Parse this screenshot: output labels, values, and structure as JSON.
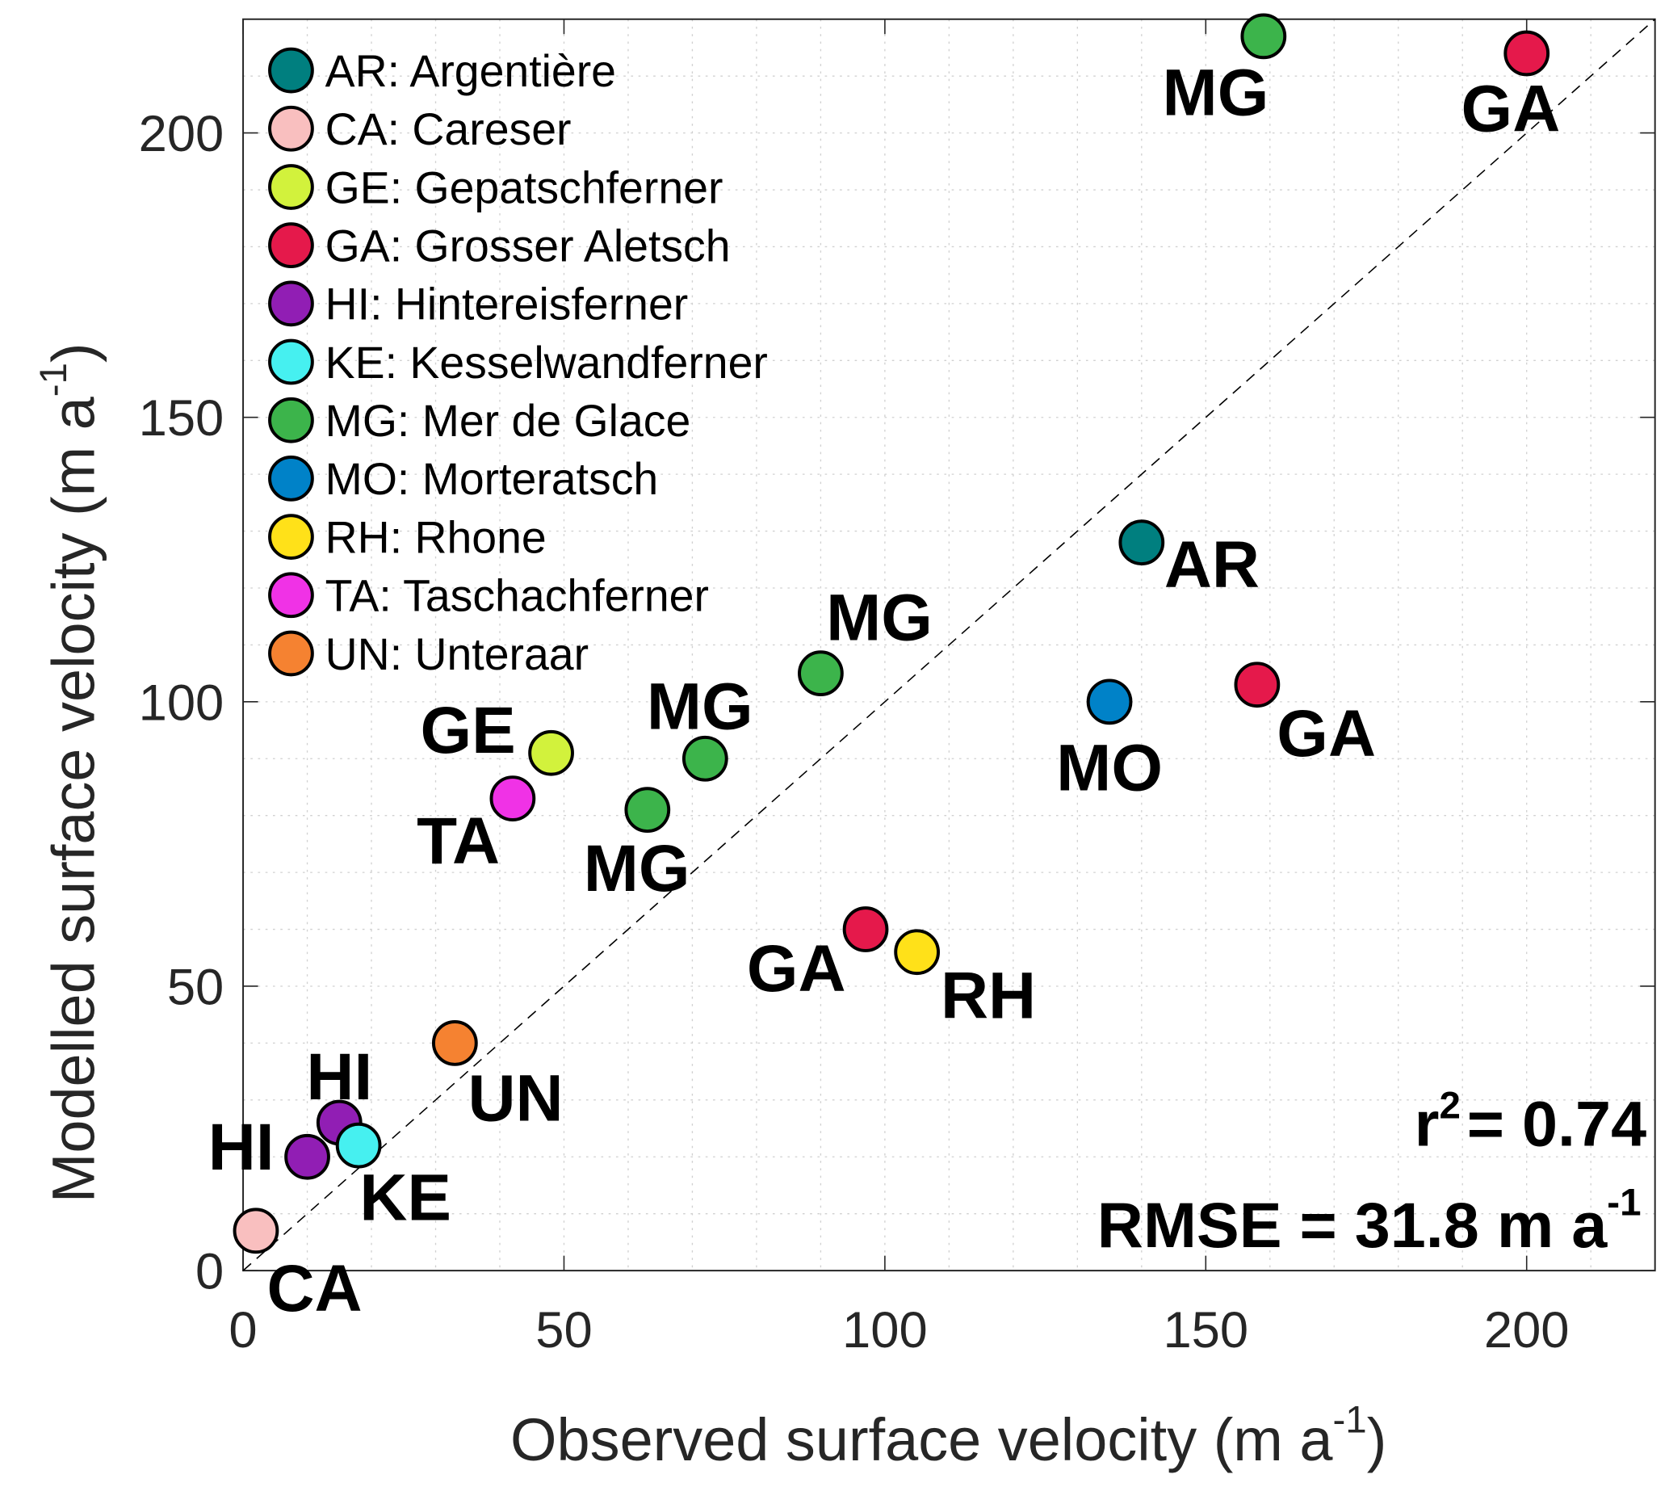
{
  "chart_data": {
    "type": "scatter",
    "xlabel": "Observed surface velocity (m a",
    "ylabel": "Modelled surface velocity (m a",
    "unit_superscript": "-1",
    "xlim": [
      0,
      220
    ],
    "ylim": [
      0,
      220
    ],
    "xticks": [
      0,
      50,
      100,
      150,
      200
    ],
    "yticks": [
      0,
      50,
      100,
      150,
      200
    ],
    "grid": true,
    "one_to_one_line": true,
    "legend_placement": "top-left",
    "legend": [
      {
        "code": "AR",
        "label": "AR: Argentière",
        "color": "#007f7f"
      },
      {
        "code": "CA",
        "label": "CA: Careser",
        "color": "#f9bfbf"
      },
      {
        "code": "GE",
        "label": "GE: Gepatschferner",
        "color": "#d2f23c"
      },
      {
        "code": "GA",
        "label": "GA: Grosser Aletsch",
        "color": "#e5194b"
      },
      {
        "code": "HI",
        "label": "HI: Hintereisferner",
        "color": "#911eb4"
      },
      {
        "code": "KE",
        "label": "KE: Kesselwandferner",
        "color": "#46f0f0"
      },
      {
        "code": "MG",
        "label": "MG: Mer de Glace",
        "color": "#3cb44b"
      },
      {
        "code": "MO",
        "label": "MO: Morteratsch",
        "color": "#0082c8"
      },
      {
        "code": "RH",
        "label": "RH: Rhone",
        "color": "#ffe119"
      },
      {
        "code": "TA",
        "label": "TA: Taschachferner",
        "color": "#f032e6"
      },
      {
        "code": "UN",
        "label": "UN: Unteraar",
        "color": "#f58231"
      }
    ],
    "points": [
      {
        "code": "MG",
        "x": 159,
        "y": 217
      },
      {
        "code": "GA",
        "x": 200,
        "y": 214
      },
      {
        "code": "AR",
        "x": 140,
        "y": 128
      },
      {
        "code": "MG",
        "x": 90,
        "y": 105
      },
      {
        "code": "MG",
        "x": 72,
        "y": 90
      },
      {
        "code": "GE",
        "x": 48,
        "y": 91
      },
      {
        "code": "TA",
        "x": 42,
        "y": 83
      },
      {
        "code": "MG",
        "x": 63,
        "y": 81
      },
      {
        "code": "GA",
        "x": 158,
        "y": 103
      },
      {
        "code": "MO",
        "x": 135,
        "y": 100
      },
      {
        "code": "GA",
        "x": 97,
        "y": 60
      },
      {
        "code": "RH",
        "x": 105,
        "y": 56
      },
      {
        "code": "UN",
        "x": 33,
        "y": 40
      },
      {
        "code": "HI",
        "x": 15,
        "y": 26
      },
      {
        "code": "HI",
        "x": 10,
        "y": 20
      },
      {
        "code": "KE",
        "x": 18,
        "y": 22
      },
      {
        "code": "CA",
        "x": 2,
        "y": 7
      }
    ],
    "stats": {
      "r2_label": "r",
      "r2_sup": "2",
      "r2_value": "= 0.74",
      "rmse": "RMSE = 31.8 m a",
      "rmse_sup": "-1"
    }
  }
}
